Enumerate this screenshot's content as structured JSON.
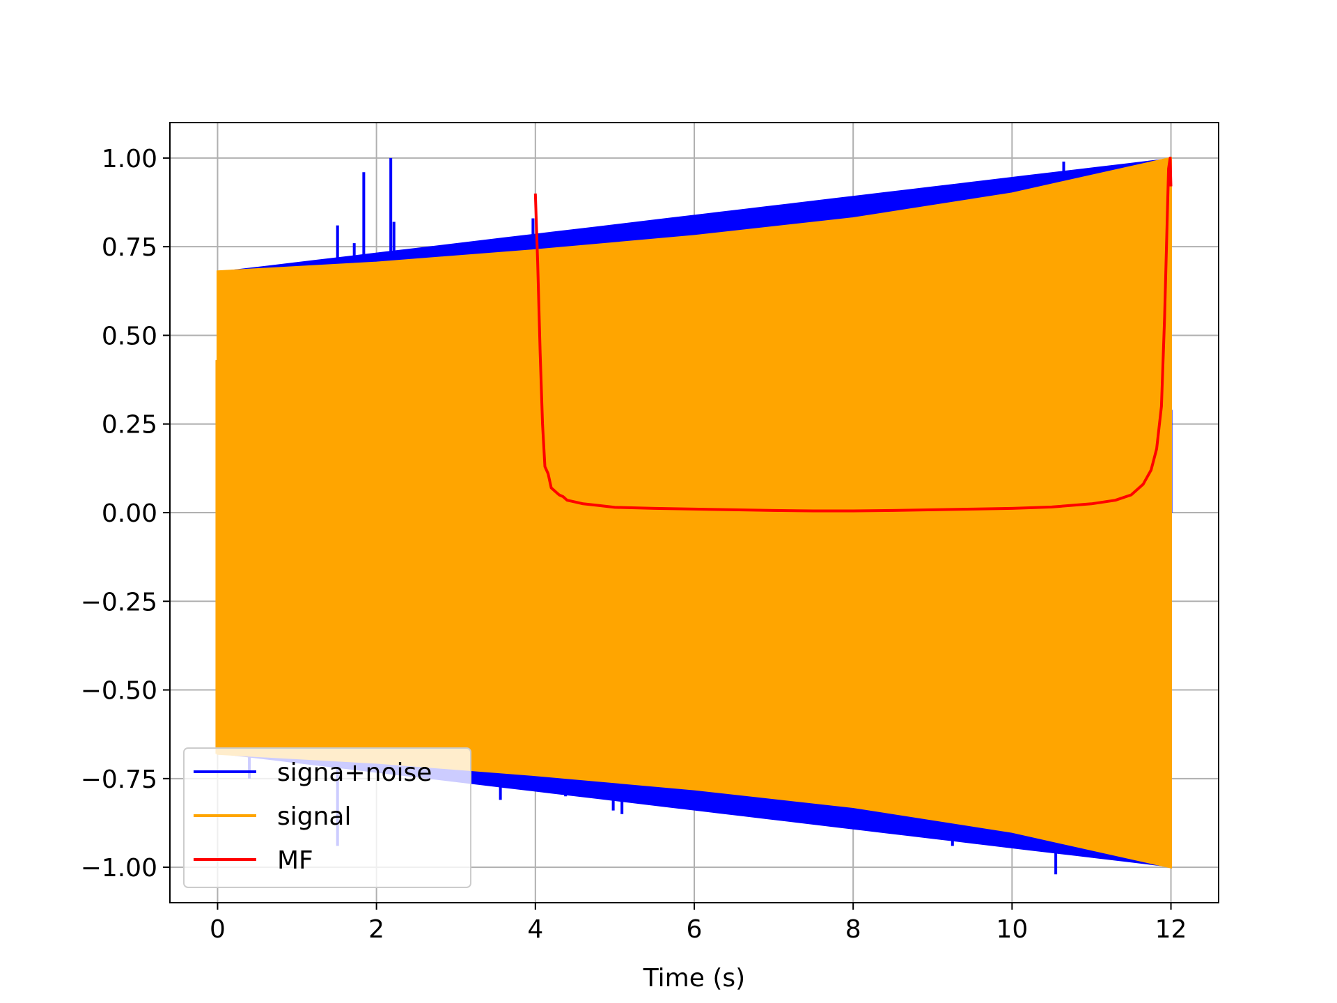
{
  "chart_data": {
    "type": "line",
    "title": "",
    "xlabel": "Time (s)",
    "ylabel": "",
    "xlim": [
      -0.6,
      12.6
    ],
    "ylim": [
      -1.1,
      1.1
    ],
    "xticks": [
      0,
      2,
      4,
      6,
      8,
      10,
      12
    ],
    "xtick_labels": [
      "0",
      "2",
      "4",
      "6",
      "8",
      "10",
      "12"
    ],
    "yticks": [
      1.0,
      0.75,
      0.5,
      0.25,
      0.0,
      -0.25,
      -0.5,
      -0.75,
      -1.0
    ],
    "ytick_labels": [
      "1.00",
      "0.75",
      "0.50",
      "0.25",
      "0.00",
      "−0.25",
      "−0.50",
      "−0.75",
      "−1.00"
    ],
    "grid": true,
    "legend_position": "lower-left",
    "series": [
      {
        "name": "signa+noise",
        "color": "#0000ff",
        "signal_envelope": {
          "x": [
            0,
            12
          ],
          "amplitude": [
            0.68,
            1.0
          ]
        },
        "noise_spikes": [
          {
            "x": 0.0,
            "y": 0.43
          },
          {
            "x": 0.02,
            "y": -0.47
          },
          {
            "x": 0.4,
            "y": -0.75
          },
          {
            "x": 0.83,
            "y": 0.69
          },
          {
            "x": 1.51,
            "y": 0.81
          },
          {
            "x": 1.51,
            "y": -0.94
          },
          {
            "x": 1.72,
            "y": 0.76
          },
          {
            "x": 1.84,
            "y": 0.96
          },
          {
            "x": 2.18,
            "y": 1.0
          },
          {
            "x": 2.22,
            "y": 0.82
          },
          {
            "x": 2.7,
            "y": 0.72
          },
          {
            "x": 3.56,
            "y": 0.76
          },
          {
            "x": 3.56,
            "y": -0.81
          },
          {
            "x": 3.97,
            "y": 0.83
          },
          {
            "x": 4.38,
            "y": -0.8
          },
          {
            "x": 4.52,
            "y": 0.78
          },
          {
            "x": 4.52,
            "y": -0.78
          },
          {
            "x": 4.98,
            "y": -0.84
          },
          {
            "x": 5.06,
            "y": 0.78
          },
          {
            "x": 5.09,
            "y": -0.85
          },
          {
            "x": 5.15,
            "y": -0.79
          },
          {
            "x": 5.6,
            "y": -0.8
          },
          {
            "x": 6.75,
            "y": 0.8
          },
          {
            "x": 7.93,
            "y": 0.85
          },
          {
            "x": 8.2,
            "y": -0.87
          },
          {
            "x": 8.5,
            "y": -0.9
          },
          {
            "x": 9.25,
            "y": 0.89
          },
          {
            "x": 9.25,
            "y": -0.94
          },
          {
            "x": 10.5,
            "y": 0.92
          },
          {
            "x": 10.55,
            "y": -1.02
          },
          {
            "x": 10.65,
            "y": 0.99
          },
          {
            "x": 12.0,
            "y": 0.29
          }
        ]
      },
      {
        "name": "signal",
        "color": "#ffa500",
        "envelope_x": [
          0,
          2,
          4,
          6,
          8,
          10,
          12
        ],
        "envelope_upper": [
          0.68,
          0.705,
          0.74,
          0.78,
          0.83,
          0.9,
          1.0
        ],
        "envelope_lower": [
          -0.68,
          -0.705,
          -0.74,
          -0.78,
          -0.83,
          -0.9,
          -1.0
        ]
      },
      {
        "name": "MF",
        "color": "#ff0000",
        "x": [
          4.0,
          4.03,
          4.06,
          4.09,
          4.12,
          4.16,
          4.2,
          4.25,
          4.3,
          4.35,
          4.4,
          4.5,
          4.6,
          4.8,
          5.0,
          5.5,
          6.0,
          6.5,
          7.0,
          7.5,
          8.0,
          8.5,
          9.0,
          9.5,
          10.0,
          10.5,
          11.0,
          11.3,
          11.5,
          11.65,
          11.75,
          11.82,
          11.88,
          11.92,
          11.95,
          11.97,
          11.99,
          12.0
        ],
        "y": [
          0.9,
          0.7,
          0.45,
          0.25,
          0.13,
          0.11,
          0.07,
          0.06,
          0.05,
          0.045,
          0.035,
          0.03,
          0.025,
          0.02,
          0.015,
          0.012,
          0.01,
          0.008,
          0.006,
          0.005,
          0.005,
          0.006,
          0.008,
          0.01,
          0.012,
          0.016,
          0.025,
          0.035,
          0.05,
          0.08,
          0.12,
          0.18,
          0.3,
          0.55,
          0.8,
          0.97,
          1.0,
          0.92
        ]
      }
    ]
  }
}
